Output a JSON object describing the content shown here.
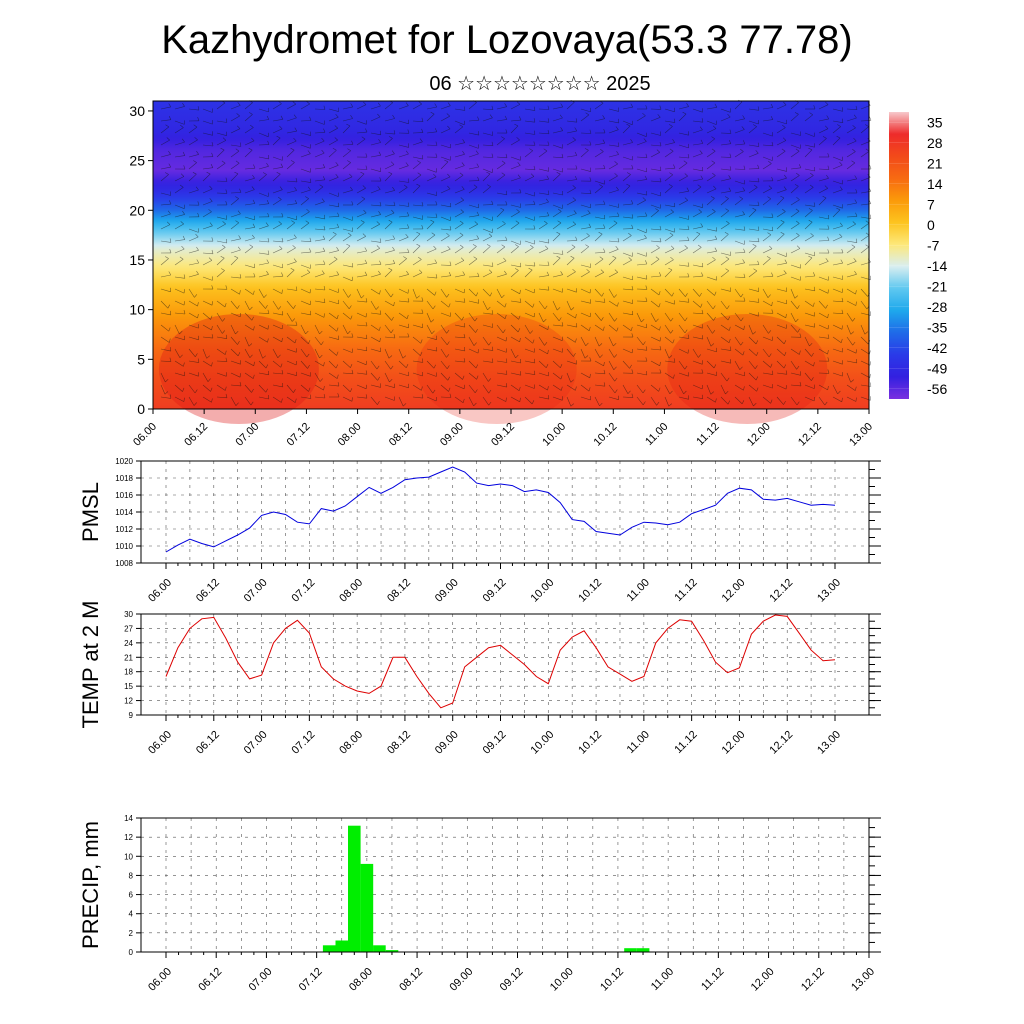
{
  "title": "Kazhydromet for Lozovaya(53.3 77.78)",
  "subtitle": "06 ☆☆☆☆☆☆☆☆ 2025",
  "time_ticks": [
    "06.00",
    "06.12",
    "07.00",
    "07.12",
    "08.00",
    "08.12",
    "09.00",
    "09.12",
    "10.00",
    "10.12",
    "11.00",
    "11.12",
    "12.00",
    "12.12",
    "13.00"
  ],
  "chart_data": [
    {
      "type": "heatmap",
      "title": "",
      "x_ticks": [
        "06.00",
        "06.12",
        "07.00",
        "07.12",
        "08.00",
        "08.12",
        "09.00",
        "09.12",
        "10.00",
        "10.12",
        "11.00",
        "11.12",
        "12.00",
        "12.12",
        "13.00"
      ],
      "y_ticks": [
        "0",
        "5",
        "10",
        "15",
        "20",
        "25",
        "30"
      ],
      "ylim": [
        0,
        31
      ],
      "colorbar_labels": [
        "35",
        "28",
        "21",
        "14",
        "7",
        "0",
        "-7",
        "-14",
        "-21",
        "-28",
        "-35",
        "-42",
        "-49",
        "-56"
      ],
      "colorbar_colors": [
        "#f7c9cc",
        "#ee2b2b",
        "#f24a1a",
        "#f76a12",
        "#fb9a0a",
        "#fdc41f",
        "#fde87a",
        "#d9eef0",
        "#5fc8f0",
        "#1ea8ec",
        "#1f6ae8",
        "#2a3ae8",
        "#3320e0",
        "#7a30e0"
      ],
      "temperature_profile": {
        "heights": [
          0,
          3,
          6,
          9,
          12,
          14,
          16,
          18,
          20,
          22,
          24,
          26,
          28,
          31
        ],
        "values": [
          24,
          20,
          14,
          8,
          1,
          -6,
          -12,
          -22,
          -35,
          -46,
          -54,
          -52,
          -47,
          -44
        ]
      },
      "overlay": "wind barbs"
    },
    {
      "type": "line",
      "ylabel": "PMSL",
      "ylim": [
        1008,
        1020
      ],
      "y_ticks": [
        "1008",
        "1010",
        "1012",
        "1014",
        "1016",
        "1018",
        "1020"
      ],
      "x_ticks": [
        "06.00",
        "06.12",
        "07.00",
        "07.12",
        "08.00",
        "08.12",
        "09.00",
        "09.12",
        "10.00",
        "10.12",
        "11.00",
        "11.12",
        "12.00",
        "12.12",
        "13.00"
      ],
      "series": [
        {
          "color": "#0000dd",
          "x": [
            0,
            3,
            6,
            9,
            12,
            15,
            18,
            21,
            24,
            27,
            30,
            33,
            36,
            39,
            42,
            45,
            48,
            51,
            54,
            57,
            60,
            63,
            66,
            69,
            72,
            75,
            78,
            81,
            84,
            87,
            90,
            93,
            96,
            99,
            102,
            105,
            108,
            111,
            114,
            117,
            120,
            123,
            126,
            129,
            132,
            135,
            138,
            141,
            144,
            147,
            150,
            153,
            156,
            159,
            162,
            165,
            168
          ],
          "values": [
            1009.3,
            1010.1,
            1010.8,
            1010.3,
            1009.9,
            1010.6,
            1011.3,
            1012.1,
            1013.6,
            1014,
            1013.7,
            1012.8,
            1012.6,
            1014.4,
            1014.1,
            1014.7,
            1015.8,
            1016.9,
            1016.2,
            1016.9,
            1017.8,
            1018,
            1018.1,
            1018.7,
            1019.3,
            1018.7,
            1017.4,
            1017.1,
            1017.3,
            1017.1,
            1016.4,
            1016.6,
            1016.3,
            1015.1,
            1013.1,
            1012.9,
            1011.7,
            1011.5,
            1011.3,
            1012.2,
            1012.8,
            1012.7,
            1012.5,
            1012.8,
            1013.8,
            1014.3,
            1014.8,
            1016.2,
            1016.8,
            1016.6,
            1015.5,
            1015.4,
            1015.6,
            1015.2,
            1014.8,
            1014.9,
            1014.8
          ]
        }
      ]
    },
    {
      "type": "line",
      "ylabel": "TEMP at 2 M",
      "ylim": [
        9,
        30
      ],
      "y_ticks": [
        "9",
        "12",
        "15",
        "18",
        "21",
        "24",
        "27",
        "30"
      ],
      "x_ticks": [
        "06.00",
        "06.12",
        "07.00",
        "07.12",
        "08.00",
        "08.12",
        "09.00",
        "09.12",
        "10.00",
        "10.12",
        "11.00",
        "11.12",
        "12.00",
        "12.12",
        "13.00"
      ],
      "series": [
        {
          "color": "#dd0000",
          "x": [
            0,
            3,
            6,
            9,
            12,
            15,
            18,
            21,
            24,
            27,
            30,
            33,
            36,
            39,
            42,
            45,
            48,
            51,
            54,
            57,
            60,
            63,
            66,
            69,
            72,
            75,
            78,
            81,
            84,
            87,
            90,
            93,
            96,
            99,
            102,
            105,
            108,
            111,
            114,
            117,
            120,
            123,
            126,
            129,
            132,
            135,
            138,
            141,
            144,
            147,
            150,
            153,
            156,
            159,
            162,
            165,
            168
          ],
          "values": [
            17,
            23,
            27,
            29,
            29.3,
            25,
            20,
            16.5,
            17.3,
            24,
            27,
            28.7,
            26,
            19,
            16.5,
            15,
            14,
            13.5,
            15,
            21,
            21,
            17,
            13.5,
            10.5,
            11.5,
            19,
            21,
            23,
            23.5,
            21.5,
            19.5,
            17,
            15.5,
            22.5,
            25.2,
            26.5,
            23,
            19,
            17.5,
            16,
            17,
            24,
            27,
            28.8,
            28.5,
            24.5,
            20,
            17.8,
            18.8,
            25.8,
            28.5,
            29.8,
            29.5,
            26,
            22.5,
            20.3,
            20.5
          ]
        }
      ]
    },
    {
      "type": "bar",
      "ylabel": "PRECIP, mm",
      "ylim": [
        0,
        14
      ],
      "y_ticks": [
        "0",
        "2",
        "4",
        "6",
        "8",
        "10",
        "12",
        "14"
      ],
      "x_ticks": [
        "06.00",
        "06.12",
        "07.00",
        "07.12",
        "08.00",
        "08.12",
        "09.00",
        "09.12",
        "10.00",
        "10.12",
        "11.00",
        "11.12",
        "12.00",
        "12.12",
        "13.00"
      ],
      "bar_color": "#00ee00",
      "bar_width_hours": 3,
      "x": [
        39,
        42,
        45,
        48,
        51,
        54,
        111,
        114
      ],
      "values": [
        0.7,
        1.2,
        13.2,
        9.2,
        0.7,
        0.2,
        0.4,
        0.4
      ]
    }
  ]
}
